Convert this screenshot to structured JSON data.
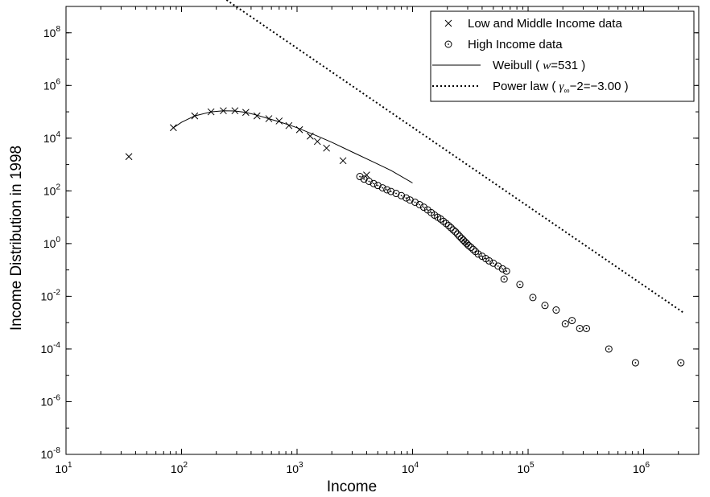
{
  "chart_data": {
    "type": "scatter",
    "title": "",
    "xlabel": "Income",
    "ylabel": "Income Distribution in 1998",
    "xscale": "log",
    "yscale": "log",
    "xlim": [
      10,
      3000000
    ],
    "ylim": [
      1e-08,
      1000000000.0
    ],
    "grid": false,
    "legend_position": "top-right",
    "x_ticks": [
      {
        "value": 10,
        "base": "10",
        "exp": "1"
      },
      {
        "value": 100,
        "base": "10",
        "exp": "2"
      },
      {
        "value": 1000,
        "base": "10",
        "exp": "3"
      },
      {
        "value": 10000,
        "base": "10",
        "exp": "4"
      },
      {
        "value": 100000,
        "base": "10",
        "exp": "5"
      },
      {
        "value": 1000000,
        "base": "10",
        "exp": "6"
      }
    ],
    "y_ticks": [
      {
        "value": 1e-08,
        "base": "10",
        "exp": "-8"
      },
      {
        "value": 1e-06,
        "base": "10",
        "exp": "-6"
      },
      {
        "value": 0.0001,
        "base": "10",
        "exp": "-4"
      },
      {
        "value": 0.01,
        "base": "10",
        "exp": "-2"
      },
      {
        "value": 1,
        "base": "10",
        "exp": "0"
      },
      {
        "value": 100,
        "base": "10",
        "exp": "2"
      },
      {
        "value": 10000,
        "base": "10",
        "exp": "4"
      },
      {
        "value": 1000000,
        "base": "10",
        "exp": "6"
      },
      {
        "value": 100000000,
        "base": "10",
        "exp": "8"
      }
    ],
    "legend": [
      {
        "key": "low_middle",
        "label": "Low and Middle Income data"
      },
      {
        "key": "high",
        "label": "High Income data"
      },
      {
        "key": "weibull",
        "label_pre": "Weibull ( ",
        "label_var": "w",
        "label_post": "=531 )"
      },
      {
        "key": "power",
        "label_pre": "Power law ( ",
        "label_var": "γ",
        "label_sub": "∞",
        "label_post": "−2=−3.00 )"
      }
    ],
    "series": [
      {
        "key": "low_middle",
        "marker": "x",
        "points": [
          [
            35,
            2000
          ],
          [
            85,
            25000
          ],
          [
            130,
            70000
          ],
          [
            180,
            100000
          ],
          [
            230,
            110000
          ],
          [
            290,
            110000
          ],
          [
            360,
            95000
          ],
          [
            450,
            70000
          ],
          [
            570,
            55000
          ],
          [
            700,
            45000
          ],
          [
            850,
            30000
          ],
          [
            1050,
            21000
          ],
          [
            1300,
            12000
          ],
          [
            1500,
            7500
          ],
          [
            1800,
            4200
          ],
          [
            2500,
            1400
          ],
          [
            4000,
            400
          ]
        ]
      },
      {
        "key": "high",
        "marker": "circle",
        "points": [
          [
            3500,
            350
          ],
          [
            3800,
            280
          ],
          [
            4200,
            230
          ],
          [
            4600,
            190
          ],
          [
            5000,
            160
          ],
          [
            5500,
            130
          ],
          [
            6000,
            110
          ],
          [
            6500,
            95
          ],
          [
            7200,
            80
          ],
          [
            8000,
            66
          ],
          [
            8800,
            54
          ],
          [
            9500,
            45
          ],
          [
            10500,
            37
          ],
          [
            11500,
            30
          ],
          [
            12500,
            24
          ],
          [
            13500,
            19
          ],
          [
            14500,
            15
          ],
          [
            15500,
            12
          ],
          [
            16500,
            10
          ],
          [
            17500,
            8.5
          ],
          [
            18500,
            7
          ],
          [
            19500,
            5.8
          ],
          [
            20500,
            4.8
          ],
          [
            21500,
            4
          ],
          [
            22500,
            3.3
          ],
          [
            23500,
            2.8
          ],
          [
            24500,
            2.3
          ],
          [
            25500,
            1.9
          ],
          [
            26500,
            1.6
          ],
          [
            27500,
            1.35
          ],
          [
            28500,
            1.15
          ],
          [
            29500,
            1
          ],
          [
            30500,
            0.85
          ],
          [
            32000,
            0.72
          ],
          [
            33500,
            0.6
          ],
          [
            35000,
            0.5
          ],
          [
            37000,
            0.4
          ],
          [
            40000,
            0.33
          ],
          [
            43000,
            0.27
          ],
          [
            46000,
            0.22
          ],
          [
            50000,
            0.18
          ],
          [
            55000,
            0.14
          ],
          [
            60000,
            0.11
          ],
          [
            65000,
            0.09
          ],
          [
            62000,
            0.045
          ],
          [
            85000,
            0.028
          ],
          [
            110000,
            0.009
          ],
          [
            140000,
            0.0045
          ],
          [
            175000,
            0.003
          ],
          [
            210000,
            0.0009
          ],
          [
            240000,
            0.0012
          ],
          [
            280000,
            0.0006
          ],
          [
            320000,
            0.0006
          ],
          [
            500000,
            0.0001
          ],
          [
            850000,
            3e-05
          ],
          [
            2100000,
            3e-05
          ]
        ]
      },
      {
        "key": "weibull",
        "line": "solid",
        "points": [
          [
            85,
            25000
          ],
          [
            100,
            40000
          ],
          [
            130,
            70000
          ],
          [
            180,
            100000
          ],
          [
            230,
            110000
          ],
          [
            290,
            108000
          ],
          [
            360,
            95000
          ],
          [
            450,
            75000
          ],
          [
            570,
            55000
          ],
          [
            700,
            42000
          ],
          [
            850,
            32000
          ],
          [
            1000,
            25000
          ],
          [
            1500,
            12000
          ],
          [
            2000,
            7000
          ],
          [
            3000,
            3000
          ],
          [
            4500,
            1300
          ],
          [
            6500,
            600
          ],
          [
            10000,
            200
          ]
        ]
      },
      {
        "key": "power",
        "line": "dotted",
        "exponent": -3.0,
        "x_range": [
          85,
          2200000
        ]
      }
    ]
  }
}
